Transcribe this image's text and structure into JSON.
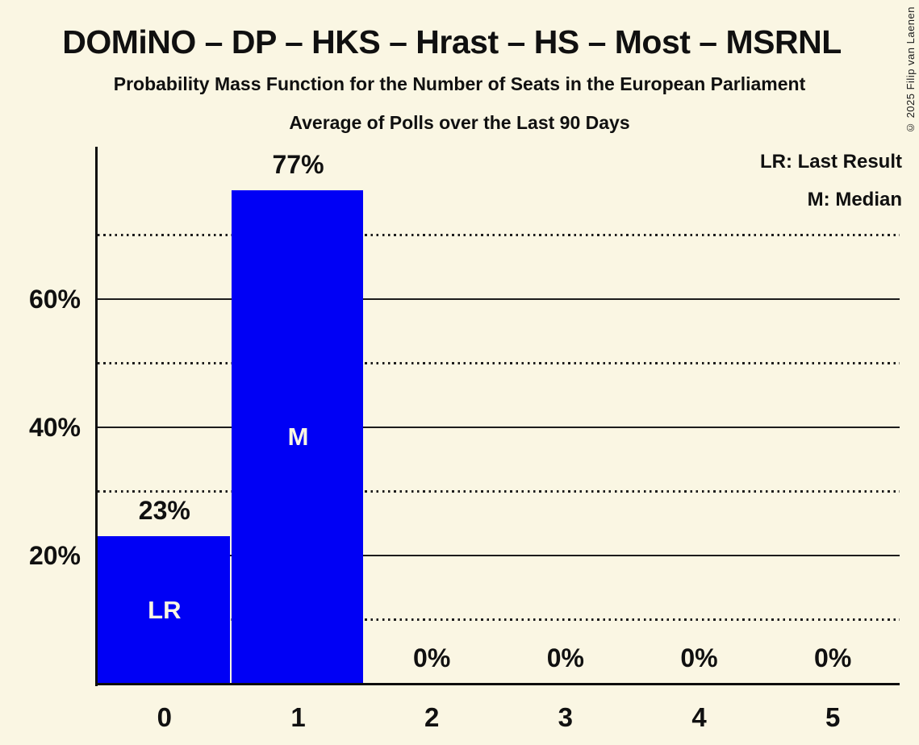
{
  "title": "DOMiNO – DP – HKS – Hrast – HS – Most – MSRNL",
  "subtitle1": "Probability Mass Function for the Number of Seats in the European Parliament",
  "subtitle2": "Average of Polls over the Last 90 Days",
  "copyright": "© 2025 Filip van Laenen",
  "legend": {
    "lr": "LR: Last Result",
    "m": "M: Median"
  },
  "colors": {
    "background": "#FAF6E3",
    "bar": "#0000F5",
    "bar_label_text": "#FAF6E3",
    "text": "#101010",
    "grid": "#1C1C1C"
  },
  "chart_data": {
    "type": "bar",
    "title": "DOMiNO – DP – HKS – Hrast – HS – Most – MSRNL",
    "xlabel": "",
    "ylabel": "",
    "categories": [
      "0",
      "1",
      "2",
      "3",
      "4",
      "5"
    ],
    "values": [
      23,
      77,
      0,
      0,
      0,
      0
    ],
    "value_labels": [
      "23%",
      "77%",
      "0%",
      "0%",
      "0%",
      "0%"
    ],
    "bar_annotations": [
      "LR",
      "M",
      "",
      "",
      "",
      ""
    ],
    "ylim": [
      0,
      84
    ],
    "yticks_labeled": [
      {
        "label": "20%",
        "value": 20
      },
      {
        "label": "40%",
        "value": 40
      },
      {
        "label": "60%",
        "value": 60
      }
    ],
    "yticks_dotted": [
      10,
      30,
      50,
      70
    ],
    "grid": "horizontal",
    "legend_entries": [
      "LR: Last Result",
      "M: Median"
    ],
    "legend_position": "top-right"
  }
}
